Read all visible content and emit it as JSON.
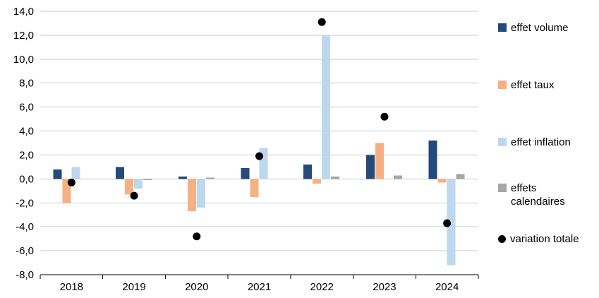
{
  "chart_data": {
    "type": "bar",
    "title": "",
    "xlabel": "",
    "ylabel": "",
    "categories": [
      "2018",
      "2019",
      "2020",
      "2021",
      "2022",
      "2023",
      "2024"
    ],
    "series": [
      {
        "name": "effet volume",
        "color": "#24497B",
        "values": [
          0.8,
          1.0,
          0.2,
          0.9,
          1.2,
          2.0,
          3.2
        ]
      },
      {
        "name": "effet taux",
        "color": "#F5B183",
        "values": [
          -2.0,
          -1.3,
          -2.7,
          -1.5,
          -0.4,
          3.0,
          -0.3
        ]
      },
      {
        "name": "effet inflation",
        "color": "#BDD7EE",
        "values": [
          1.0,
          -0.8,
          -2.4,
          2.6,
          12.0,
          0.0,
          -7.2
        ]
      },
      {
        "name": "effets calendaires",
        "color": "#A6A6A6",
        "values": [
          0.0,
          -0.1,
          0.1,
          0.0,
          0.2,
          0.3,
          0.4
        ]
      }
    ],
    "dots": {
      "name": "variation totale",
      "color": "#000000",
      "values": [
        -0.3,
        -1.4,
        -4.8,
        1.9,
        13.1,
        5.2,
        -3.7
      ]
    },
    "ylim": [
      -8,
      14
    ],
    "ytick_step": 2,
    "decimal_separator": ",",
    "grid": true,
    "legend_position": "right",
    "colors": {
      "gridline": "#C8C8C8",
      "axis_line": "#000000",
      "text": "#000000"
    }
  }
}
